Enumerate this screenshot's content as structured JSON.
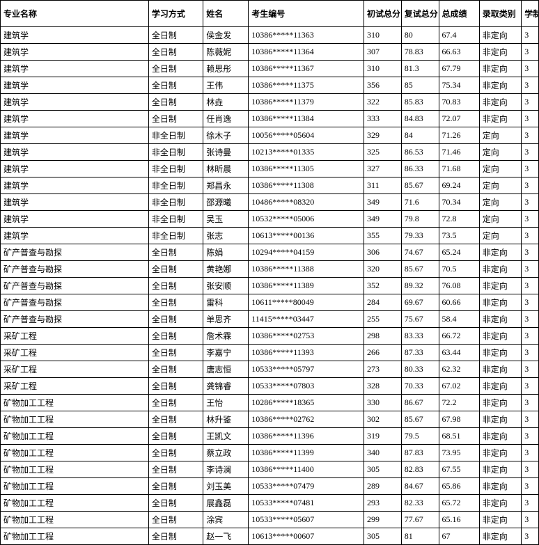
{
  "headers": {
    "major": "专业名称",
    "mode": "学习方式",
    "name": "姓名",
    "id": "考生编号",
    "score1": "初试总分",
    "score2": "复试总分",
    "total": "总成绩",
    "type": "录取类别",
    "years": "学制"
  },
  "rows": [
    {
      "major": "建筑学",
      "mode": "全日制",
      "name": "侯金发",
      "id": "10386*****11363",
      "s1": "310",
      "s2": "80",
      "tot": "67.4",
      "type": "非定向",
      "yr": "3"
    },
    {
      "major": "建筑学",
      "mode": "全日制",
      "name": "陈薇妮",
      "id": "10386*****11364",
      "s1": "307",
      "s2": "78.83",
      "tot": "66.63",
      "type": "非定向",
      "yr": "3"
    },
    {
      "major": "建筑学",
      "mode": "全日制",
      "name": "赖思彤",
      "id": "10386*****11367",
      "s1": "310",
      "s2": "81.3",
      "tot": "67.79",
      "type": "非定向",
      "yr": "3"
    },
    {
      "major": "建筑学",
      "mode": "全日制",
      "name": "王伟",
      "id": "10386*****11375",
      "s1": "356",
      "s2": "85",
      "tot": "75.34",
      "type": "非定向",
      "yr": "3"
    },
    {
      "major": "建筑学",
      "mode": "全日制",
      "name": "林垚",
      "id": "10386*****11379",
      "s1": "322",
      "s2": "85.83",
      "tot": "70.83",
      "type": "非定向",
      "yr": "3"
    },
    {
      "major": "建筑学",
      "mode": "全日制",
      "name": "任肖逸",
      "id": "10386*****11384",
      "s1": "333",
      "s2": "84.83",
      "tot": "72.07",
      "type": "非定向",
      "yr": "3"
    },
    {
      "major": "建筑学",
      "mode": "非全日制",
      "name": "徐木子",
      "id": "10056*****05604",
      "s1": "329",
      "s2": "84",
      "tot": "71.26",
      "type": "定向",
      "yr": "3"
    },
    {
      "major": "建筑学",
      "mode": "非全日制",
      "name": "张诗曼",
      "id": "10213*****01335",
      "s1": "325",
      "s2": "86.53",
      "tot": "71.46",
      "type": "定向",
      "yr": "3"
    },
    {
      "major": "建筑学",
      "mode": "非全日制",
      "name": "林昕晨",
      "id": "10386*****11305",
      "s1": "327",
      "s2": "86.33",
      "tot": "71.68",
      "type": "定向",
      "yr": "3"
    },
    {
      "major": "建筑学",
      "mode": "非全日制",
      "name": "郑昌永",
      "id": "10386*****11308",
      "s1": "311",
      "s2": "85.67",
      "tot": "69.24",
      "type": "定向",
      "yr": "3"
    },
    {
      "major": "建筑学",
      "mode": "非全日制",
      "name": "邵源曦",
      "id": "10486*****08320",
      "s1": "349",
      "s2": "71.6",
      "tot": "70.34",
      "type": "定向",
      "yr": "3"
    },
    {
      "major": "建筑学",
      "mode": "非全日制",
      "name": "吴玉",
      "id": "10532*****05006",
      "s1": "349",
      "s2": "79.8",
      "tot": "72.8",
      "type": "定向",
      "yr": "3"
    },
    {
      "major": "建筑学",
      "mode": "非全日制",
      "name": "张志",
      "id": "10613*****00136",
      "s1": "355",
      "s2": "79.33",
      "tot": "73.5",
      "type": "定向",
      "yr": "3"
    },
    {
      "major": "矿产普查与勘探",
      "mode": "全日制",
      "name": "陈娟",
      "id": "10294*****04159",
      "s1": "306",
      "s2": "74.67",
      "tot": "65.24",
      "type": "非定向",
      "yr": "3"
    },
    {
      "major": "矿产普查与勘探",
      "mode": "全日制",
      "name": "黄艳娜",
      "id": "10386*****11388",
      "s1": "320",
      "s2": "85.67",
      "tot": "70.5",
      "type": "非定向",
      "yr": "3"
    },
    {
      "major": "矿产普查与勘探",
      "mode": "全日制",
      "name": "张安顺",
      "id": "10386*****11389",
      "s1": "352",
      "s2": "89.32",
      "tot": "76.08",
      "type": "非定向",
      "yr": "3"
    },
    {
      "major": "矿产普查与勘探",
      "mode": "全日制",
      "name": "雷科",
      "id": "10611*****80049",
      "s1": "284",
      "s2": "69.67",
      "tot": "60.66",
      "type": "非定向",
      "yr": "3"
    },
    {
      "major": "矿产普查与勘探",
      "mode": "全日制",
      "name": "单思齐",
      "id": "11415*****03447",
      "s1": "255",
      "s2": "75.67",
      "tot": "58.4",
      "type": "非定向",
      "yr": "3"
    },
    {
      "major": "采矿工程",
      "mode": "全日制",
      "name": "詹术霖",
      "id": "10386*****02753",
      "s1": "298",
      "s2": "83.33",
      "tot": "66.72",
      "type": "非定向",
      "yr": "3"
    },
    {
      "major": "采矿工程",
      "mode": "全日制",
      "name": "李嘉宁",
      "id": "10386*****11393",
      "s1": "266",
      "s2": "87.33",
      "tot": "63.44",
      "type": "非定向",
      "yr": "3"
    },
    {
      "major": "采矿工程",
      "mode": "全日制",
      "name": "唐志恒",
      "id": "10533*****05797",
      "s1": "273",
      "s2": "80.33",
      "tot": "62.32",
      "type": "非定向",
      "yr": "3"
    },
    {
      "major": "采矿工程",
      "mode": "全日制",
      "name": "龚锦睿",
      "id": "10533*****07803",
      "s1": "328",
      "s2": "70.33",
      "tot": "67.02",
      "type": "非定向",
      "yr": "3"
    },
    {
      "major": "矿物加工工程",
      "mode": "全日制",
      "name": "王怡",
      "id": "10286*****18365",
      "s1": "330",
      "s2": "86.67",
      "tot": "72.2",
      "type": "非定向",
      "yr": "3"
    },
    {
      "major": "矿物加工工程",
      "mode": "全日制",
      "name": "林升鉴",
      "id": "10386*****02762",
      "s1": "302",
      "s2": "85.67",
      "tot": "67.98",
      "type": "非定向",
      "yr": "3"
    },
    {
      "major": "矿物加工工程",
      "mode": "全日制",
      "name": "王凯文",
      "id": "10386*****11396",
      "s1": "319",
      "s2": "79.5",
      "tot": "68.51",
      "type": "非定向",
      "yr": "3"
    },
    {
      "major": "矿物加工工程",
      "mode": "全日制",
      "name": "蔡立政",
      "id": "10386*****11399",
      "s1": "340",
      "s2": "87.83",
      "tot": "73.95",
      "type": "非定向",
      "yr": "3"
    },
    {
      "major": "矿物加工工程",
      "mode": "全日制",
      "name": "李诗澜",
      "id": "10386*****11400",
      "s1": "305",
      "s2": "82.83",
      "tot": "67.55",
      "type": "非定向",
      "yr": "3"
    },
    {
      "major": "矿物加工工程",
      "mode": "全日制",
      "name": "刘玉美",
      "id": "10533*****07479",
      "s1": "289",
      "s2": "84.67",
      "tot": "65.86",
      "type": "非定向",
      "yr": "3"
    },
    {
      "major": "矿物加工工程",
      "mode": "全日制",
      "name": "展鑫磊",
      "id": "10533*****07481",
      "s1": "293",
      "s2": "82.33",
      "tot": "65.72",
      "type": "非定向",
      "yr": "3"
    },
    {
      "major": "矿物加工工程",
      "mode": "全日制",
      "name": "涂宾",
      "id": "10533*****05607",
      "s1": "299",
      "s2": "77.67",
      "tot": "65.16",
      "type": "非定向",
      "yr": "3"
    },
    {
      "major": "矿物加工工程",
      "mode": "全日制",
      "name": "赵一飞",
      "id": "10613*****00607",
      "s1": "305",
      "s2": "81",
      "tot": "67",
      "type": "非定向",
      "yr": "3"
    }
  ]
}
